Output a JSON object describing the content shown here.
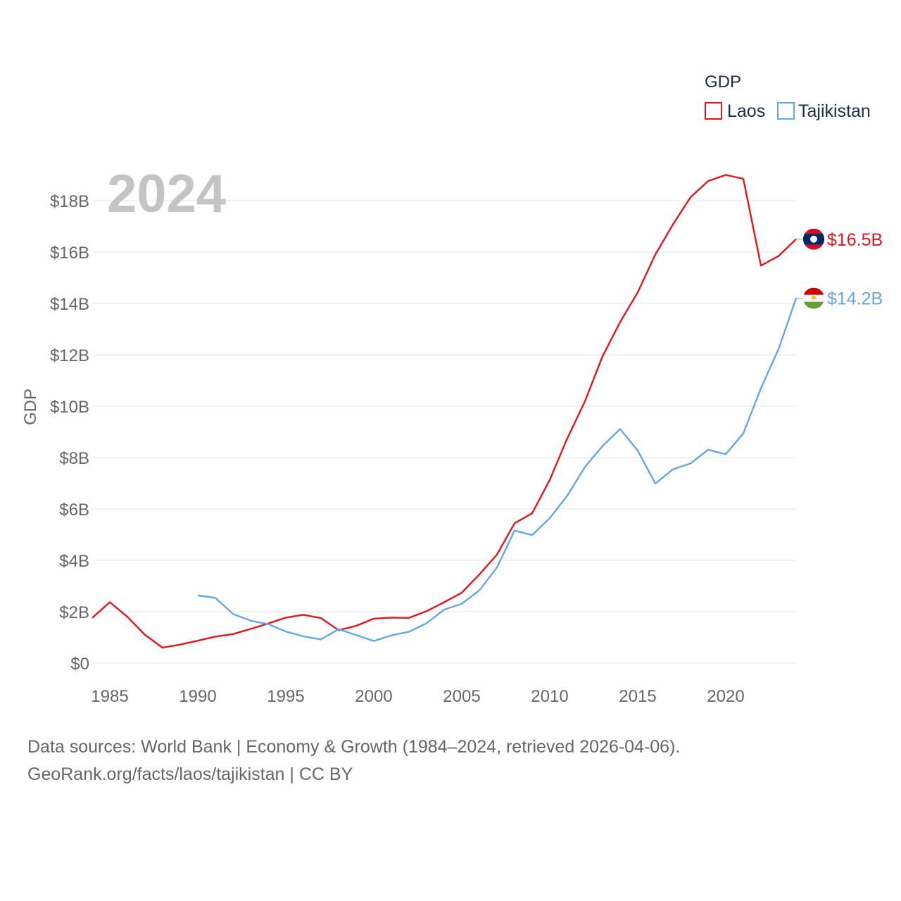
{
  "chart_data": {
    "type": "line",
    "ylabel": "GDP",
    "xlabel": "",
    "year_display": "2024",
    "legend": {
      "title": "GDP",
      "position": "top-right"
    },
    "xlim": [
      1984,
      2024
    ],
    "ylim": [
      0,
      19.5
    ],
    "x_ticks": [
      1985,
      1990,
      1995,
      2000,
      2005,
      2010,
      2015,
      2020
    ],
    "x_tick_labels": [
      "1985",
      "1990",
      "1995",
      "2000",
      "2005",
      "2010",
      "2015",
      "2020"
    ],
    "y_ticks": [
      0,
      2,
      4,
      6,
      8,
      10,
      12,
      14,
      16,
      18
    ],
    "y_tick_labels": [
      "$0",
      "$2B",
      "$4B",
      "$6B",
      "$8B",
      "$10B",
      "$12B",
      "$14B",
      "$16B",
      "$18B"
    ],
    "grid": true,
    "series": [
      {
        "name": "Laos",
        "color": "#e8141c",
        "end_label": "$16.5B",
        "flag": "laos-flag",
        "x": [
          1984,
          1985,
          1986,
          1987,
          1988,
          1989,
          1990,
          1991,
          1992,
          1993,
          1994,
          1995,
          1996,
          1997,
          1998,
          1999,
          2000,
          2001,
          2002,
          2003,
          2004,
          2005,
          2006,
          2007,
          2008,
          2009,
          2010,
          2011,
          2012,
          2013,
          2014,
          2015,
          2016,
          2017,
          2018,
          2019,
          2020,
          2021,
          2022,
          2023,
          2024
        ],
        "values": [
          1.76,
          2.37,
          1.8,
          1.1,
          0.6,
          0.72,
          0.87,
          1.03,
          1.13,
          1.33,
          1.54,
          1.77,
          1.88,
          1.75,
          1.28,
          1.45,
          1.73,
          1.77,
          1.76,
          2.02,
          2.37,
          2.74,
          3.45,
          4.22,
          5.44,
          5.83,
          7.13,
          8.75,
          10.19,
          11.94,
          13.27,
          14.43,
          15.9,
          17.07,
          18.13,
          18.76,
          19.0,
          18.85,
          15.47,
          15.84,
          16.5
        ]
      },
      {
        "name": "Tajikistan",
        "color": "#63a7e6",
        "end_label": "$14.2B",
        "flag": "tajikistan-flag",
        "x": [
          1990,
          1991,
          1992,
          1993,
          1994,
          1995,
          1996,
          1997,
          1998,
          1999,
          2000,
          2001,
          2002,
          2003,
          2004,
          2005,
          2006,
          2007,
          2008,
          2009,
          2010,
          2011,
          2012,
          2013,
          2014,
          2015,
          2016,
          2017,
          2018,
          2019,
          2020,
          2021,
          2022,
          2023,
          2024
        ],
        "values": [
          2.63,
          2.54,
          1.91,
          1.65,
          1.52,
          1.23,
          1.04,
          0.92,
          1.32,
          1.09,
          0.86,
          1.08,
          1.22,
          1.55,
          2.08,
          2.31,
          2.83,
          3.72,
          5.16,
          4.98,
          5.64,
          6.52,
          7.63,
          8.45,
          9.11,
          8.27,
          6.99,
          7.54,
          7.77,
          8.3,
          8.13,
          8.94,
          10.7,
          12.22,
          14.2
        ]
      }
    ]
  },
  "source": {
    "line1": "Data sources: World Bank | Economy & Growth (1984–2024, retrieved 2026-04-06).",
    "line2": "GeoRank.org/facts/laos/tajikistan | CC BY"
  }
}
